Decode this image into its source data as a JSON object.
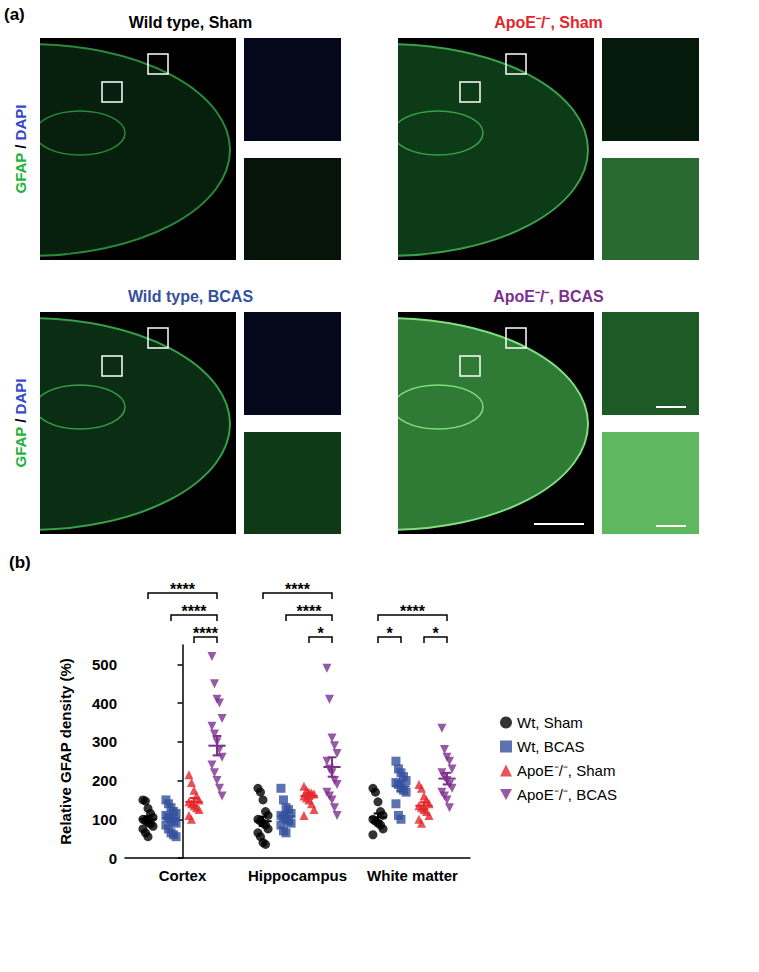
{
  "panel_labels": [
    "(a)",
    "(b)"
  ],
  "panel_a": {
    "side_label": [
      {
        "text": "GFAP",
        "color": "#23b23a"
      },
      {
        "text": " / ",
        "color": "#000000"
      },
      {
        "text": "DAPI",
        "color": "#3848c8"
      }
    ],
    "images": [
      {
        "title": "Wild type, Sham",
        "color": "#000000"
      },
      {
        "title": "ApoE⁻/⁻, Sham",
        "color": "#e3262c"
      },
      {
        "title": "Wild type, BCAS",
        "color": "#34509e"
      },
      {
        "title": "ApoE⁻/⁻, BCAS",
        "color": "#7d2f8e"
      }
    ]
  },
  "chart_data": {
    "type": "scatter",
    "y_label": "Relative GFAP density (%)",
    "categories": [
      "Cortex",
      "Hippocampus",
      "White matter"
    ],
    "ylim": [
      0,
      550
    ],
    "yticks": [
      0,
      100,
      200,
      300,
      400,
      500
    ],
    "grid": false,
    "legend": "right",
    "series": [
      {
        "name": "Wt, Sham",
        "color": "#000000",
        "marker": "circle",
        "values": [
          [
            150,
            147,
            128,
            115,
            105,
            100,
            96,
            92,
            88,
            82,
            75,
            65,
            55
          ],
          [
            180,
            170,
            150,
            120,
            110,
            100,
            95,
            90,
            85,
            75,
            65,
            55,
            40,
            35
          ],
          [
            180,
            170,
            145,
            120,
            110,
            100,
            95,
            90,
            85,
            75,
            60
          ]
        ],
        "means": [
          100,
          95,
          105
        ],
        "sem": [
          8,
          12,
          10
        ]
      },
      {
        "name": "Wt, BCAS",
        "color": "#34509e",
        "marker": "square",
        "values": [
          [
            150,
            140,
            130,
            120,
            115,
            110,
            105,
            100,
            95,
            90,
            85,
            75,
            65,
            60,
            55
          ],
          [
            180,
            150,
            130,
            125,
            115,
            110,
            105,
            100,
            95,
            90,
            85,
            70,
            65
          ],
          [
            250,
            230,
            220,
            210,
            200,
            195,
            190,
            180,
            175,
            170,
            140,
            110,
            100
          ]
        ],
        "means": [
          103,
          108,
          185
        ],
        "sem": [
          7,
          8,
          12
        ]
      },
      {
        "name": "ApoE⁻/⁻, Sham",
        "color": "#e3262c",
        "marker": "triangle",
        "values": [
          [
            215,
            195,
            175,
            160,
            150,
            145,
            140,
            135,
            130,
            125,
            110,
            100
          ],
          [
            185,
            175,
            170,
            168,
            165,
            160,
            155,
            150,
            140,
            125,
            110
          ],
          [
            190,
            180,
            160,
            150,
            140,
            135,
            130,
            125,
            120,
            110,
            100,
            90
          ]
        ],
        "means": [
          145,
          160,
          135
        ],
        "sem": [
          10,
          7,
          9
        ]
      },
      {
        "name": "ApoE⁻/⁻, BCAS",
        "color": "#7d2f8e",
        "marker": "triangle-down",
        "values": [
          [
            520,
            450,
            410,
            400,
            360,
            340,
            320,
            300,
            280,
            260,
            240,
            220,
            200,
            180,
            160
          ],
          [
            490,
            410,
            310,
            290,
            270,
            250,
            230,
            220,
            200,
            190,
            170,
            160,
            150,
            130,
            110
          ],
          [
            335,
            280,
            260,
            250,
            230,
            220,
            210,
            200,
            190,
            180,
            170,
            160,
            150,
            130
          ]
        ],
        "means": [
          290,
          235,
          205
        ],
        "sem": [
          25,
          25,
          15
        ]
      }
    ],
    "annotations": [
      {
        "category": "Cortex",
        "from": "Wt, Sham",
        "to": "ApoE⁻/⁻, BCAS",
        "label": "****"
      },
      {
        "category": "Cortex",
        "from": "Wt, BCAS",
        "to": "ApoE⁻/⁻, BCAS",
        "label": "****"
      },
      {
        "category": "Cortex",
        "from": "ApoE⁻/⁻, Sham",
        "to": "ApoE⁻/⁻, BCAS",
        "label": "****"
      },
      {
        "category": "Hippocampus",
        "from": "Wt, Sham",
        "to": "ApoE⁻/⁻, BCAS",
        "label": "****"
      },
      {
        "category": "Hippocampus",
        "from": "Wt, BCAS",
        "to": "ApoE⁻/⁻, BCAS",
        "label": "****"
      },
      {
        "category": "Hippocampus",
        "from": "ApoE⁻/⁻, Sham",
        "to": "ApoE⁻/⁻, BCAS",
        "label": "*"
      },
      {
        "category": "White matter",
        "from": "Wt, Sham",
        "to": "ApoE⁻/⁻, BCAS",
        "label": "****"
      },
      {
        "category": "White matter",
        "from": "Wt, Sham",
        "to": "Wt, BCAS",
        "label": "*"
      },
      {
        "category": "White matter",
        "from": "ApoE⁻/⁻, Sham",
        "to": "ApoE⁻/⁻, BCAS",
        "label": "*"
      }
    ]
  }
}
